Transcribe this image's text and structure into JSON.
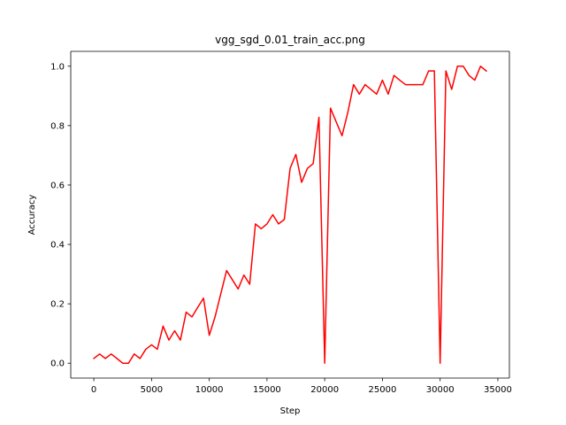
{
  "chart_data": {
    "type": "line",
    "title": "vgg_sgd_0.01_train_acc.png",
    "xlabel": "Step",
    "ylabel": "Accuracy",
    "xlim": [
      -2000,
      36000
    ],
    "ylim": [
      -0.05,
      1.05
    ],
    "xticks": [
      0,
      5000,
      10000,
      15000,
      20000,
      25000,
      30000,
      35000
    ],
    "xtick_labels": [
      "0",
      "5000",
      "10000",
      "15000",
      "20000",
      "25000",
      "30000",
      "35000"
    ],
    "yticks": [
      0.0,
      0.2,
      0.4,
      0.6,
      0.8,
      1.0
    ],
    "ytick_labels": [
      "0.0",
      "0.2",
      "0.4",
      "0.6",
      "0.8",
      "1.0"
    ],
    "grid": false,
    "series": [
      {
        "color": "#ff0000",
        "x": [
          0,
          500,
          1000,
          1500,
          2000,
          2500,
          3000,
          3500,
          4000,
          4500,
          5000,
          5500,
          6000,
          6500,
          7000,
          7500,
          8000,
          8500,
          9000,
          9500,
          10000,
          10500,
          11000,
          11500,
          12000,
          12500,
          13000,
          13500,
          14000,
          14500,
          15000,
          15500,
          16000,
          16500,
          17000,
          17500,
          18000,
          18500,
          19000,
          19500,
          20000,
          20500,
          21000,
          21500,
          22000,
          22500,
          23000,
          23500,
          24000,
          24500,
          25000,
          25500,
          26000,
          26500,
          27000,
          27500,
          28000,
          28500,
          29000,
          29500,
          30000,
          30500,
          31000,
          31500,
          32000,
          32500,
          33000,
          33500,
          34000
        ],
        "y": [
          0.016,
          0.031,
          0.016,
          0.031,
          0.016,
          0.0,
          0.0,
          0.031,
          0.016,
          0.047,
          0.062,
          0.047,
          0.125,
          0.078,
          0.109,
          0.078,
          0.172,
          0.156,
          0.188,
          0.219,
          0.094,
          0.156,
          0.234,
          0.312,
          0.281,
          0.25,
          0.297,
          0.266,
          0.469,
          0.453,
          0.469,
          0.5,
          0.469,
          0.484,
          0.656,
          0.703,
          0.609,
          0.656,
          0.672,
          0.828,
          0.0,
          0.859,
          0.812,
          0.766,
          0.844,
          0.938,
          0.906,
          0.938,
          0.922,
          0.906,
          0.953,
          0.906,
          0.969,
          0.953,
          0.938,
          0.938,
          0.938,
          0.938,
          0.984,
          0.984,
          0.0,
          0.984,
          0.922,
          1.0,
          1.0,
          0.969,
          0.953,
          1.0,
          0.984
        ]
      }
    ]
  }
}
